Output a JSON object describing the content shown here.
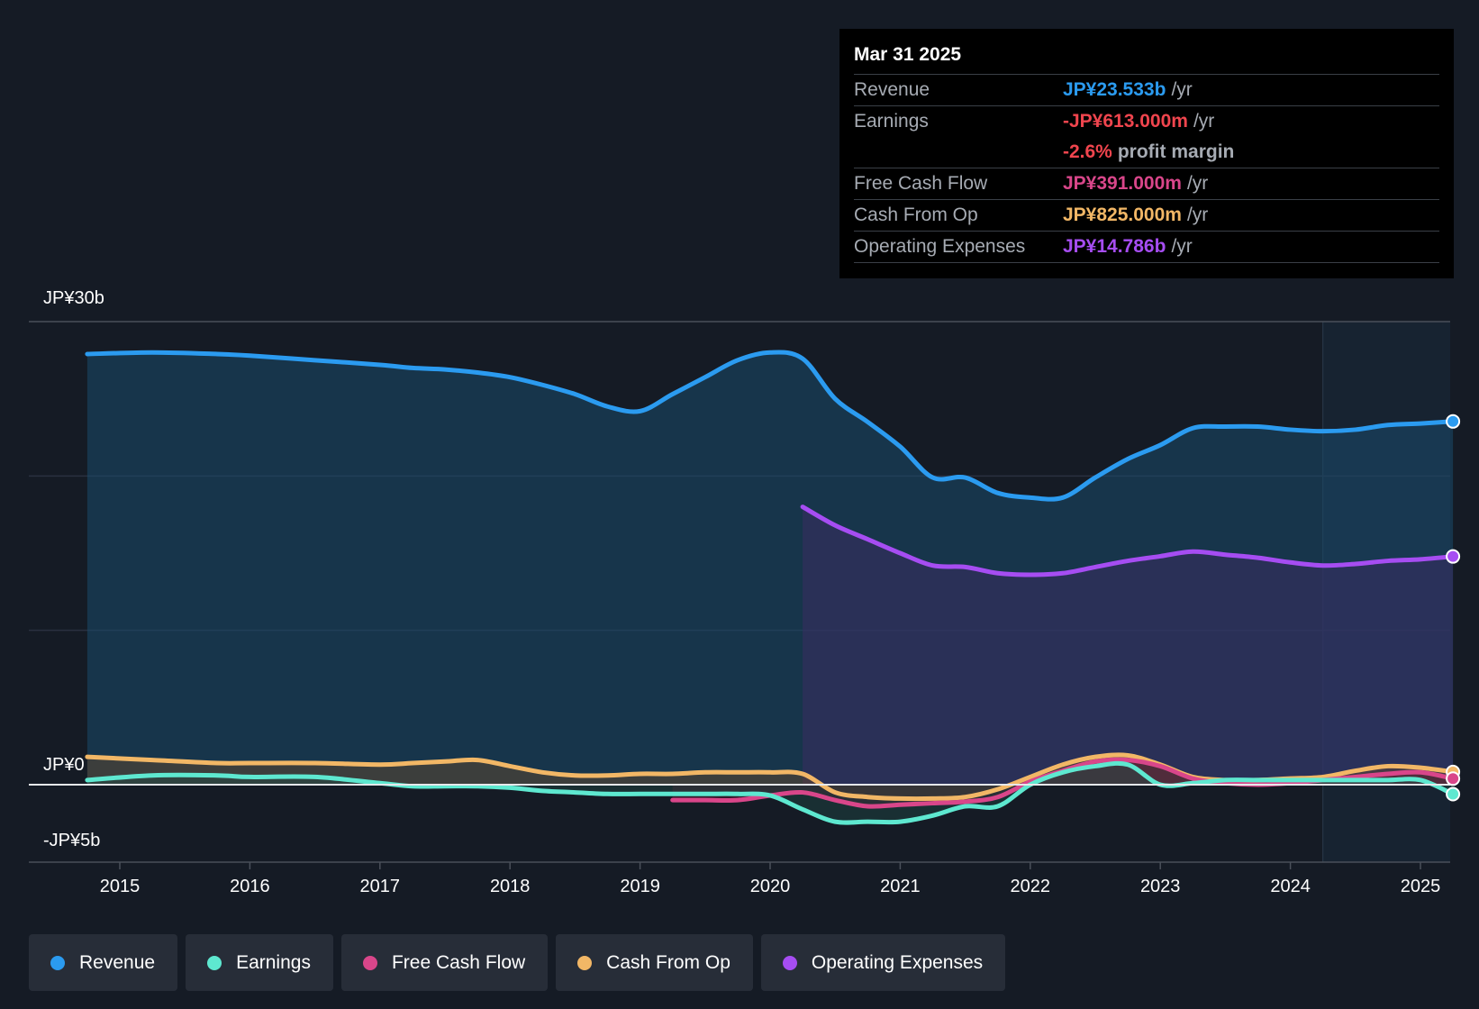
{
  "tooltip": {
    "date": "Mar 31 2025",
    "rows": [
      {
        "label": "Revenue",
        "value": "JP¥23.533b",
        "unit": "/yr",
        "color": "#2b9bf0"
      },
      {
        "label": "Earnings",
        "value": "-JP¥613.000m",
        "unit": "/yr",
        "color": "#f0454e"
      },
      {
        "label": "",
        "value": "-2.6%",
        "unit": "profit margin",
        "color": "#f0454e"
      },
      {
        "label": "Free Cash Flow",
        "value": "JP¥391.000m",
        "unit": "/yr",
        "color": "#d9468a"
      },
      {
        "label": "Cash From Op",
        "value": "JP¥825.000m",
        "unit": "/yr",
        "color": "#f2b766"
      },
      {
        "label": "Operating Expenses",
        "value": "JP¥14.786b",
        "unit": "/yr",
        "color": "#a64df2"
      }
    ]
  },
  "legend": [
    {
      "label": "Revenue",
      "color": "#2b9bf0"
    },
    {
      "label": "Earnings",
      "color": "#5ee8d0"
    },
    {
      "label": "Free Cash Flow",
      "color": "#d9468a"
    },
    {
      "label": "Cash From Op",
      "color": "#f2b766"
    },
    {
      "label": "Operating Expenses",
      "color": "#a64df2"
    }
  ],
  "chart_data": {
    "type": "area",
    "title": "",
    "xlabel": "",
    "ylabel": "",
    "y_labels": [
      "JP¥30b",
      "JP¥0",
      "-JP¥5b"
    ],
    "ylim": [
      -5,
      30
    ],
    "xlim": [
      2014.74,
      2025.25
    ],
    "x_ticks": [
      "2015",
      "2016",
      "2017",
      "2018",
      "2019",
      "2020",
      "2021",
      "2022",
      "2023",
      "2024",
      "2025"
    ],
    "past_data_start": 2024.25,
    "series": [
      {
        "name": "Revenue",
        "color": "#2b9bf0",
        "fill": "#1a4a6c",
        "x": [
          2014.75,
          2015.25,
          2015.75,
          2016.0,
          2016.5,
          2017.0,
          2017.25,
          2017.5,
          2017.75,
          2018.0,
          2018.25,
          2018.5,
          2018.75,
          2019.0,
          2019.25,
          2019.5,
          2019.75,
          2020.0,
          2020.25,
          2020.5,
          2020.75,
          2021.0,
          2021.25,
          2021.5,
          2021.75,
          2022.0,
          2022.25,
          2022.5,
          2022.75,
          2023.0,
          2023.25,
          2023.5,
          2023.75,
          2024.0,
          2024.25,
          2024.5,
          2024.75,
          2025.0,
          2025.25
        ],
        "values": [
          27.9,
          28.0,
          27.9,
          27.8,
          27.5,
          27.2,
          27.0,
          26.9,
          26.7,
          26.4,
          25.9,
          25.3,
          24.5,
          24.2,
          25.3,
          26.4,
          27.5,
          28.0,
          27.6,
          25.0,
          23.5,
          21.9,
          19.9,
          19.9,
          18.9,
          18.6,
          18.6,
          19.9,
          21.1,
          22.0,
          23.1,
          23.2,
          23.2,
          23.0,
          22.9,
          23.0,
          23.3,
          23.4,
          23.533
        ]
      },
      {
        "name": "Operating Expenses",
        "color": "#a64df2",
        "fill": "#3a2c62",
        "x": [
          2020.25,
          2020.5,
          2020.75,
          2021.0,
          2021.25,
          2021.5,
          2021.75,
          2022.0,
          2022.25,
          2022.5,
          2022.75,
          2023.0,
          2023.25,
          2023.5,
          2023.75,
          2024.0,
          2024.25,
          2024.5,
          2024.75,
          2025.0,
          2025.25
        ],
        "values": [
          18.0,
          16.8,
          15.9,
          15.0,
          14.2,
          14.1,
          13.7,
          13.6,
          13.7,
          14.1,
          14.5,
          14.8,
          15.1,
          14.9,
          14.7,
          14.4,
          14.2,
          14.3,
          14.5,
          14.6,
          14.786
        ]
      },
      {
        "name": "Cash From Op",
        "color": "#f2b766",
        "fill": "#6a4a2a",
        "x": [
          2014.75,
          2015.25,
          2015.75,
          2016.0,
          2016.5,
          2017.0,
          2017.25,
          2017.5,
          2017.75,
          2018.0,
          2018.25,
          2018.5,
          2018.75,
          2019.0,
          2019.25,
          2019.5,
          2019.75,
          2020.0,
          2020.25,
          2020.5,
          2020.75,
          2021.0,
          2021.25,
          2021.5,
          2021.75,
          2022.0,
          2022.25,
          2022.5,
          2022.75,
          2023.0,
          2023.25,
          2023.5,
          2023.75,
          2024.0,
          2024.25,
          2024.5,
          2024.75,
          2025.0,
          2025.25
        ],
        "values": [
          1.8,
          1.6,
          1.4,
          1.4,
          1.4,
          1.3,
          1.4,
          1.5,
          1.6,
          1.2,
          0.8,
          0.6,
          0.6,
          0.7,
          0.7,
          0.8,
          0.8,
          0.8,
          0.7,
          -0.5,
          -0.8,
          -0.9,
          -0.9,
          -0.8,
          -0.3,
          0.5,
          1.3,
          1.8,
          1.9,
          1.3,
          0.5,
          0.3,
          0.3,
          0.4,
          0.5,
          0.9,
          1.2,
          1.1,
          0.825
        ]
      },
      {
        "name": "Free Cash Flow",
        "color": "#d9468a",
        "fill": "#5a1a34",
        "x": [
          2019.25,
          2019.5,
          2019.75,
          2020.0,
          2020.25,
          2020.5,
          2020.75,
          2021.0,
          2021.25,
          2021.5,
          2021.75,
          2022.0,
          2022.25,
          2022.5,
          2022.75,
          2023.0,
          2023.25,
          2023.5,
          2023.75,
          2024.0,
          2024.25,
          2024.5,
          2024.75,
          2025.0,
          2025.25
        ],
        "values": [
          -1.0,
          -1.0,
          -1.0,
          -0.7,
          -0.5,
          -1.0,
          -1.4,
          -1.3,
          -1.2,
          -1.1,
          -0.8,
          0.2,
          0.9,
          1.5,
          1.6,
          1.2,
          0.4,
          0.1,
          0.0,
          0.1,
          0.3,
          0.5,
          0.7,
          0.8,
          0.391
        ]
      },
      {
        "name": "Earnings",
        "color": "#5ee8d0",
        "fill": "#1e4a44",
        "x": [
          2014.75,
          2015.25,
          2015.75,
          2016.0,
          2016.5,
          2017.0,
          2017.25,
          2017.5,
          2017.75,
          2018.0,
          2018.25,
          2018.5,
          2018.75,
          2019.0,
          2019.25,
          2019.5,
          2019.75,
          2020.0,
          2020.25,
          2020.5,
          2020.75,
          2021.0,
          2021.25,
          2021.5,
          2021.75,
          2022.0,
          2022.25,
          2022.5,
          2022.75,
          2023.0,
          2023.25,
          2023.5,
          2023.75,
          2024.0,
          2024.25,
          2024.5,
          2024.75,
          2025.0,
          2025.25
        ],
        "values": [
          0.3,
          0.6,
          0.6,
          0.5,
          0.5,
          0.1,
          -0.1,
          -0.1,
          -0.1,
          -0.2,
          -0.4,
          -0.5,
          -0.6,
          -0.6,
          -0.6,
          -0.6,
          -0.6,
          -0.7,
          -1.6,
          -2.4,
          -2.4,
          -2.4,
          -2.0,
          -1.4,
          -1.4,
          0.0,
          0.8,
          1.2,
          1.3,
          0.0,
          0.1,
          0.3,
          0.3,
          0.3,
          0.3,
          0.3,
          0.3,
          0.3,
          -0.613
        ]
      }
    ]
  }
}
